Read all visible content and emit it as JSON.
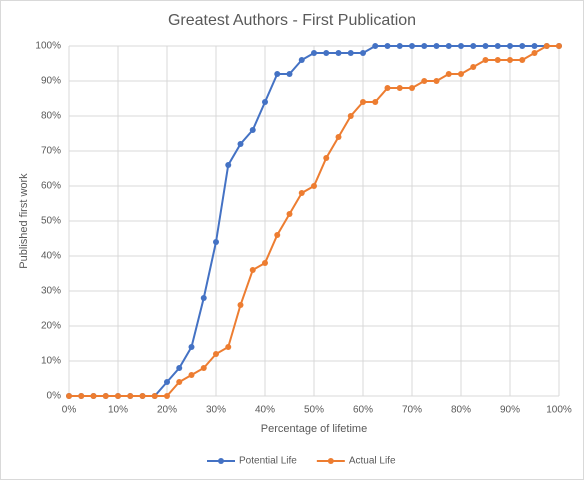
{
  "chart_data": {
    "type": "line",
    "title": "Greatest Authors - First Publication",
    "x_label": "Percentage of lifetime",
    "y_label": "Published first work",
    "x": [
      0,
      2.5,
      5,
      7.5,
      10,
      12.5,
      15,
      17.5,
      20,
      22.5,
      25,
      27.5,
      30,
      32.5,
      35,
      37.5,
      40,
      42.5,
      45,
      47.5,
      50,
      52.5,
      55,
      57.5,
      60,
      62.5,
      65,
      67.5,
      70,
      72.5,
      75,
      77.5,
      80,
      82.5,
      85,
      87.5,
      90,
      92.5,
      95,
      97.5,
      100
    ],
    "series": [
      {
        "name": "Potential Life",
        "color": "#4472c4",
        "values": [
          0,
          0,
          0,
          0,
          0,
          0,
          0,
          0,
          4,
          8,
          14,
          28,
          44,
          66,
          72,
          76,
          84,
          92,
          92,
          96,
          98,
          98,
          98,
          98,
          98,
          100,
          100,
          100,
          100,
          100,
          100,
          100,
          100,
          100,
          100,
          100,
          100,
          100,
          100,
          100,
          100
        ]
      },
      {
        "name": "Actual Life",
        "color": "#ed7d31",
        "values": [
          0,
          0,
          0,
          0,
          0,
          0,
          0,
          0,
          0,
          4,
          6,
          8,
          12,
          14,
          26,
          36,
          38,
          46,
          52,
          58,
          60,
          68,
          74,
          80,
          84,
          84,
          88,
          88,
          88,
          90,
          90,
          92,
          92,
          94,
          96,
          96,
          96,
          96,
          98,
          100,
          100
        ]
      }
    ],
    "xlim": [
      0,
      100
    ],
    "xticks": [
      {
        "value": 0,
        "label": "0%"
      },
      {
        "value": 10,
        "label": "10%"
      },
      {
        "value": 20,
        "label": "20%"
      },
      {
        "value": 30,
        "label": "30%"
      },
      {
        "value": 40,
        "label": "40%"
      },
      {
        "value": 50,
        "label": "50%"
      },
      {
        "value": 60,
        "label": "60%"
      },
      {
        "value": 70,
        "label": "70%"
      },
      {
        "value": 80,
        "label": "80%"
      },
      {
        "value": 90,
        "label": "90%"
      },
      {
        "value": 100,
        "label": "100%"
      }
    ],
    "ylim": [
      0,
      100
    ],
    "yticks": [
      {
        "value": 0,
        "label": "0%"
      },
      {
        "value": 10,
        "label": "10%"
      },
      {
        "value": 20,
        "label": "20%"
      },
      {
        "value": 30,
        "label": "30%"
      },
      {
        "value": 40,
        "label": "40%"
      },
      {
        "value": 50,
        "label": "50%"
      },
      {
        "value": 60,
        "label": "60%"
      },
      {
        "value": 70,
        "label": "70%"
      },
      {
        "value": 80,
        "label": "80%"
      },
      {
        "value": 90,
        "label": "90%"
      },
      {
        "value": 100,
        "label": "100%"
      }
    ],
    "grid": true,
    "legend": "bottom"
  }
}
